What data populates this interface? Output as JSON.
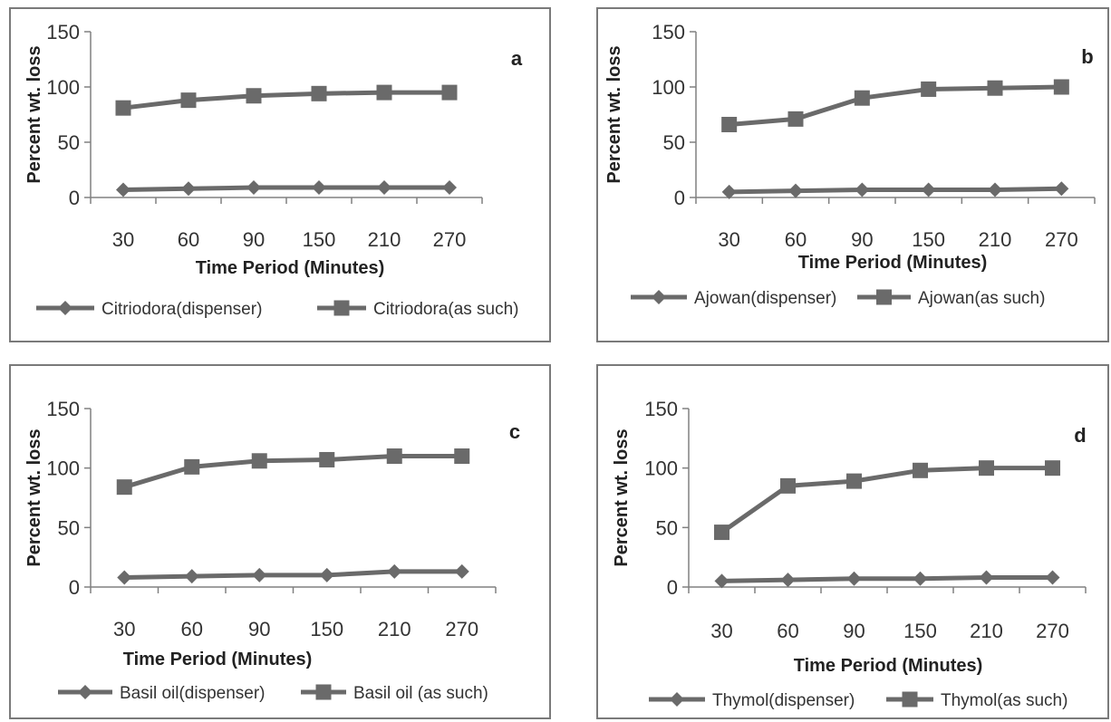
{
  "chart_data": [
    {
      "type": "line",
      "panel_label": "a",
      "x": [
        "30",
        "60",
        "90",
        "150",
        "210",
        "270"
      ],
      "xlabel": "Time Period (Minutes)",
      "ylabel": "Percent wt. loss",
      "ylim": [
        0,
        150
      ],
      "yticks": [
        "0",
        "50",
        "100",
        "150"
      ],
      "legend_position": "bottom",
      "series": [
        {
          "name": "Citriodora(dispenser)",
          "marker": "diamond",
          "values": [
            7,
            8,
            9,
            9,
            9,
            9
          ]
        },
        {
          "name": "Citriodora(as such)",
          "marker": "square",
          "values": [
            81,
            88,
            92,
            94,
            95,
            95
          ]
        }
      ]
    },
    {
      "type": "line",
      "panel_label": "b",
      "x": [
        "30",
        "60",
        "90",
        "150",
        "210",
        "270"
      ],
      "xlabel": "Time Period (Minutes)",
      "ylabel": "Percent wt. loss",
      "ylim": [
        0,
        150
      ],
      "yticks": [
        "0",
        "50",
        "100",
        "150"
      ],
      "legend_position": "bottom",
      "series": [
        {
          "name": "Ajowan(dispenser)",
          "marker": "diamond",
          "values": [
            5,
            6,
            7,
            7,
            7,
            8
          ]
        },
        {
          "name": "Ajowan(as such)",
          "marker": "square",
          "values": [
            66,
            71,
            90,
            98,
            99,
            100
          ]
        }
      ]
    },
    {
      "type": "line",
      "panel_label": "c",
      "x": [
        "30",
        "60",
        "90",
        "150",
        "210",
        "270"
      ],
      "xlabel": "Time Period (Minutes)",
      "ylabel": "Percent wt. loss",
      "ylim": [
        0,
        150
      ],
      "yticks": [
        "0",
        "50",
        "100",
        "150"
      ],
      "legend_position": "bottom",
      "series": [
        {
          "name": "Basil oil(dispenser)",
          "marker": "diamond",
          "values": [
            8,
            9,
            10,
            10,
            13,
            13
          ]
        },
        {
          "name": "Basil oil (as such)",
          "marker": "square",
          "values": [
            84,
            101,
            106,
            107,
            110,
            110
          ]
        }
      ]
    },
    {
      "type": "line",
      "panel_label": "d",
      "x": [
        "30",
        "60",
        "90",
        "150",
        "210",
        "270"
      ],
      "xlabel": "Time Period (Minutes)",
      "ylabel": "Percent wt. loss",
      "ylim": [
        0,
        150
      ],
      "yticks": [
        "0",
        "50",
        "100",
        "150"
      ],
      "legend_position": "bottom",
      "series": [
        {
          "name": "Thymol(dispenser)",
          "marker": "diamond",
          "values": [
            5,
            6,
            7,
            7,
            8,
            8
          ]
        },
        {
          "name": "Thymol(as such)",
          "marker": "square",
          "values": [
            46,
            85,
            89,
            98,
            100,
            100
          ]
        }
      ]
    }
  ],
  "colors": {
    "series_line": "#6a6a6a",
    "axis": "#808080",
    "text": "#333333",
    "frame": "#7a7a7a"
  }
}
